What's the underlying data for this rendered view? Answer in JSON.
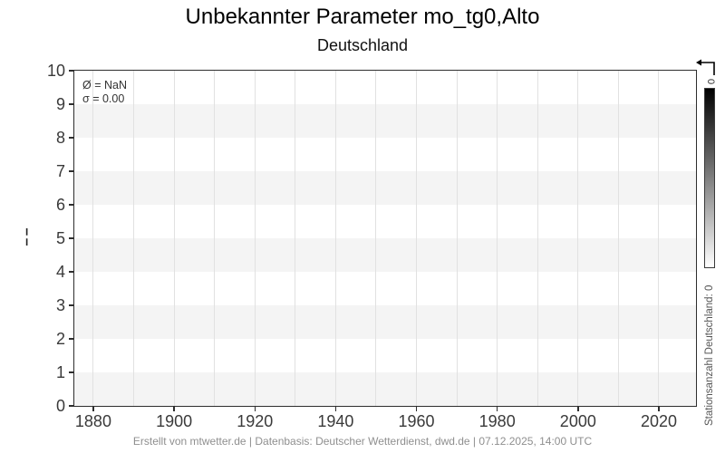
{
  "header": {
    "title": "Unbekannter Parameter mo_tg0,Alto",
    "subtitle": "Deutschland"
  },
  "legend": {
    "line1": "Ø = NaN",
    "line2": "σ = 0.00"
  },
  "y_axis_fragment": "¦",
  "colorbar": {
    "tick_label": "0",
    "label": "Stationsanzahl Deutschland: 0",
    "top_color": "#000000",
    "bottom_color": "#ffffff"
  },
  "footer": {
    "text": "Erstellt von mtwetter.de | Datenbasis: Deutscher Wetterdienst, dwd.de | 07.12.2025, 14:00 UTC"
  },
  "colors": {
    "band": "#f4f4f4",
    "gridline": "#e1e1e1",
    "axis": "#2e2e2e",
    "tick_label": "#3a3a3a",
    "footer_text": "#8f8f8f"
  },
  "chart_data": {
    "type": "area",
    "title": "Unbekannter Parameter mo_tg0,Alto",
    "subtitle": "Deutschland",
    "xlabel": "",
    "ylabel": "",
    "xlim": [
      1875.3,
      2029.2
    ],
    "ylim": [
      0,
      10
    ],
    "x_tick_labels": [
      1880,
      1900,
      1920,
      1940,
      1960,
      1980,
      2000,
      2020
    ],
    "x_gridlines": [
      1880,
      1890,
      1900,
      1910,
      1920,
      1930,
      1940,
      1950,
      1960,
      1970,
      1980,
      1990,
      2000,
      2010,
      2020
    ],
    "y_tick_labels": [
      0,
      1,
      2,
      3,
      4,
      5,
      6,
      7,
      8,
      9,
      10
    ],
    "gray_bands_y": [
      [
        0,
        1
      ],
      [
        2,
        3
      ],
      [
        4,
        5
      ],
      [
        6,
        7
      ],
      [
        8,
        9
      ]
    ],
    "series": [],
    "annotations": [
      "Ø = NaN",
      "σ = 0.00"
    ],
    "legend_position": "upper-left",
    "grid": "vertical gridlines every 10 years, horizontal alternating gray bands",
    "colorbar": {
      "label": "Stationsanzahl Deutschland: 0",
      "ticks": [
        "0"
      ],
      "gradient": "black (top) to white (bottom)"
    }
  }
}
